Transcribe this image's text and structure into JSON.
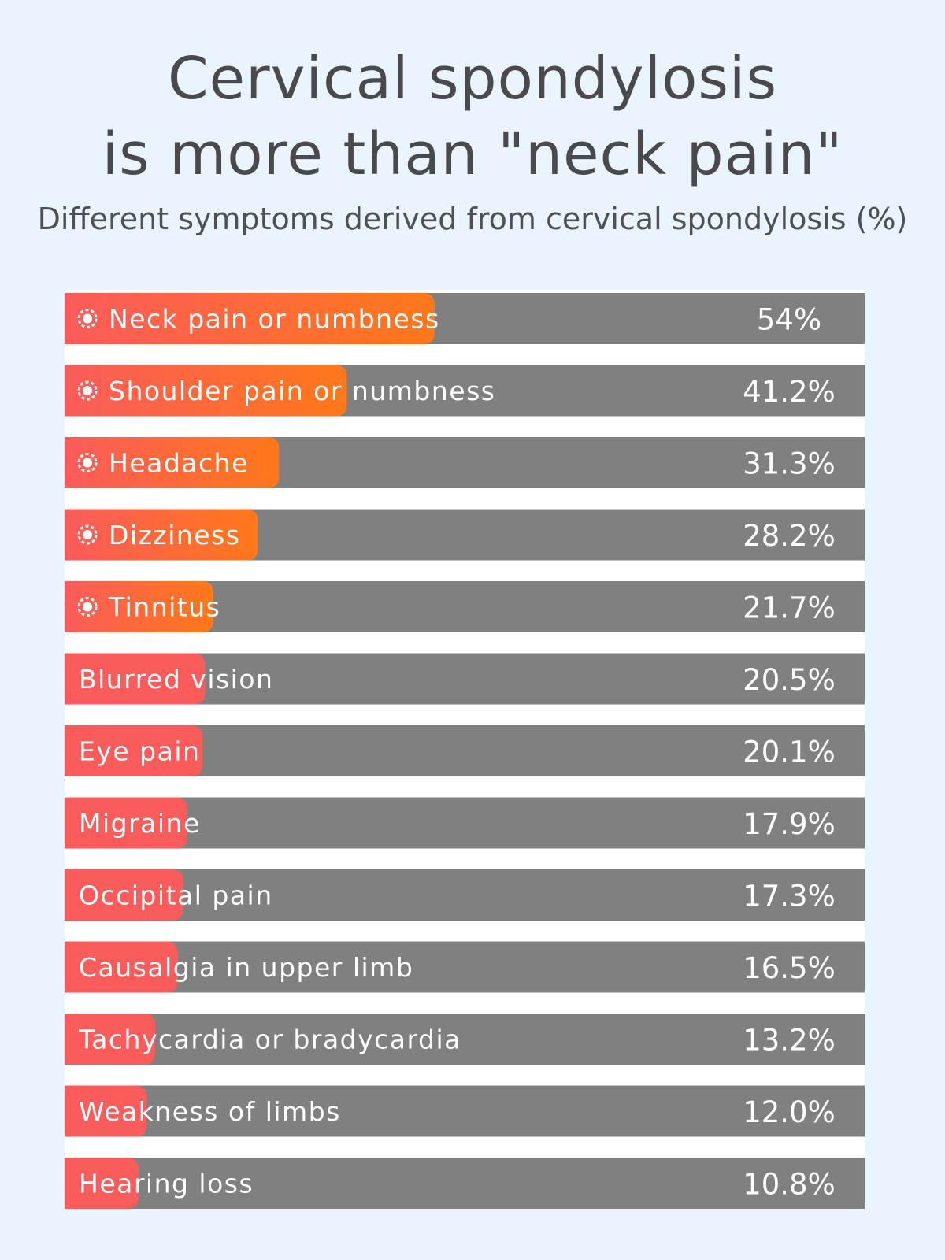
{
  "title_line1": "Cervical spondylosis",
  "title_line2": "is more than \"neck pain\"",
  "subtitle": "Different symptoms derived from cervical spondylosis (%)",
  "colors": {
    "background": "#eaf4fe",
    "track": "#808080",
    "bar_main": "#fa5b5b",
    "bar_highlight_end": "#ff7819",
    "text": "#ffffff"
  },
  "chart_data": {
    "type": "bar",
    "orientation": "horizontal",
    "title": "Cervical spondylosis is more than \"neck pain\"",
    "subtitle": "Different symptoms derived from cervical spondylosis (%)",
    "xlim": [
      0,
      100
    ],
    "grid": false,
    "legend": "none",
    "categories": [
      "Neck pain or numbness",
      "Shoulder pain or numbness",
      "Headache",
      "Dizziness",
      "Tinnitus",
      "Blurred vision",
      "Eye pain",
      "Migraine",
      "Occipital pain",
      "Causalgia in upper limb",
      "Tachycardia or bradycardia",
      "Weakness of limbs",
      "Hearing loss"
    ],
    "values": [
      54,
      41.2,
      31.3,
      28.2,
      21.7,
      20.5,
      20.1,
      17.9,
      17.3,
      16.5,
      13.2,
      12.0,
      10.8
    ],
    "value_labels": [
      "54%",
      "41.2%",
      "31.3%",
      "28.2%",
      "21.7%",
      "20.5%",
      "20.1%",
      "17.9%",
      "17.3%",
      "16.5%",
      "13.2%",
      "12.0%",
      "10.8%"
    ],
    "highlighted": [
      true,
      true,
      true,
      true,
      true,
      false,
      false,
      false,
      false,
      false,
      false,
      false,
      false
    ],
    "highlight_icon": "virus-icon"
  }
}
